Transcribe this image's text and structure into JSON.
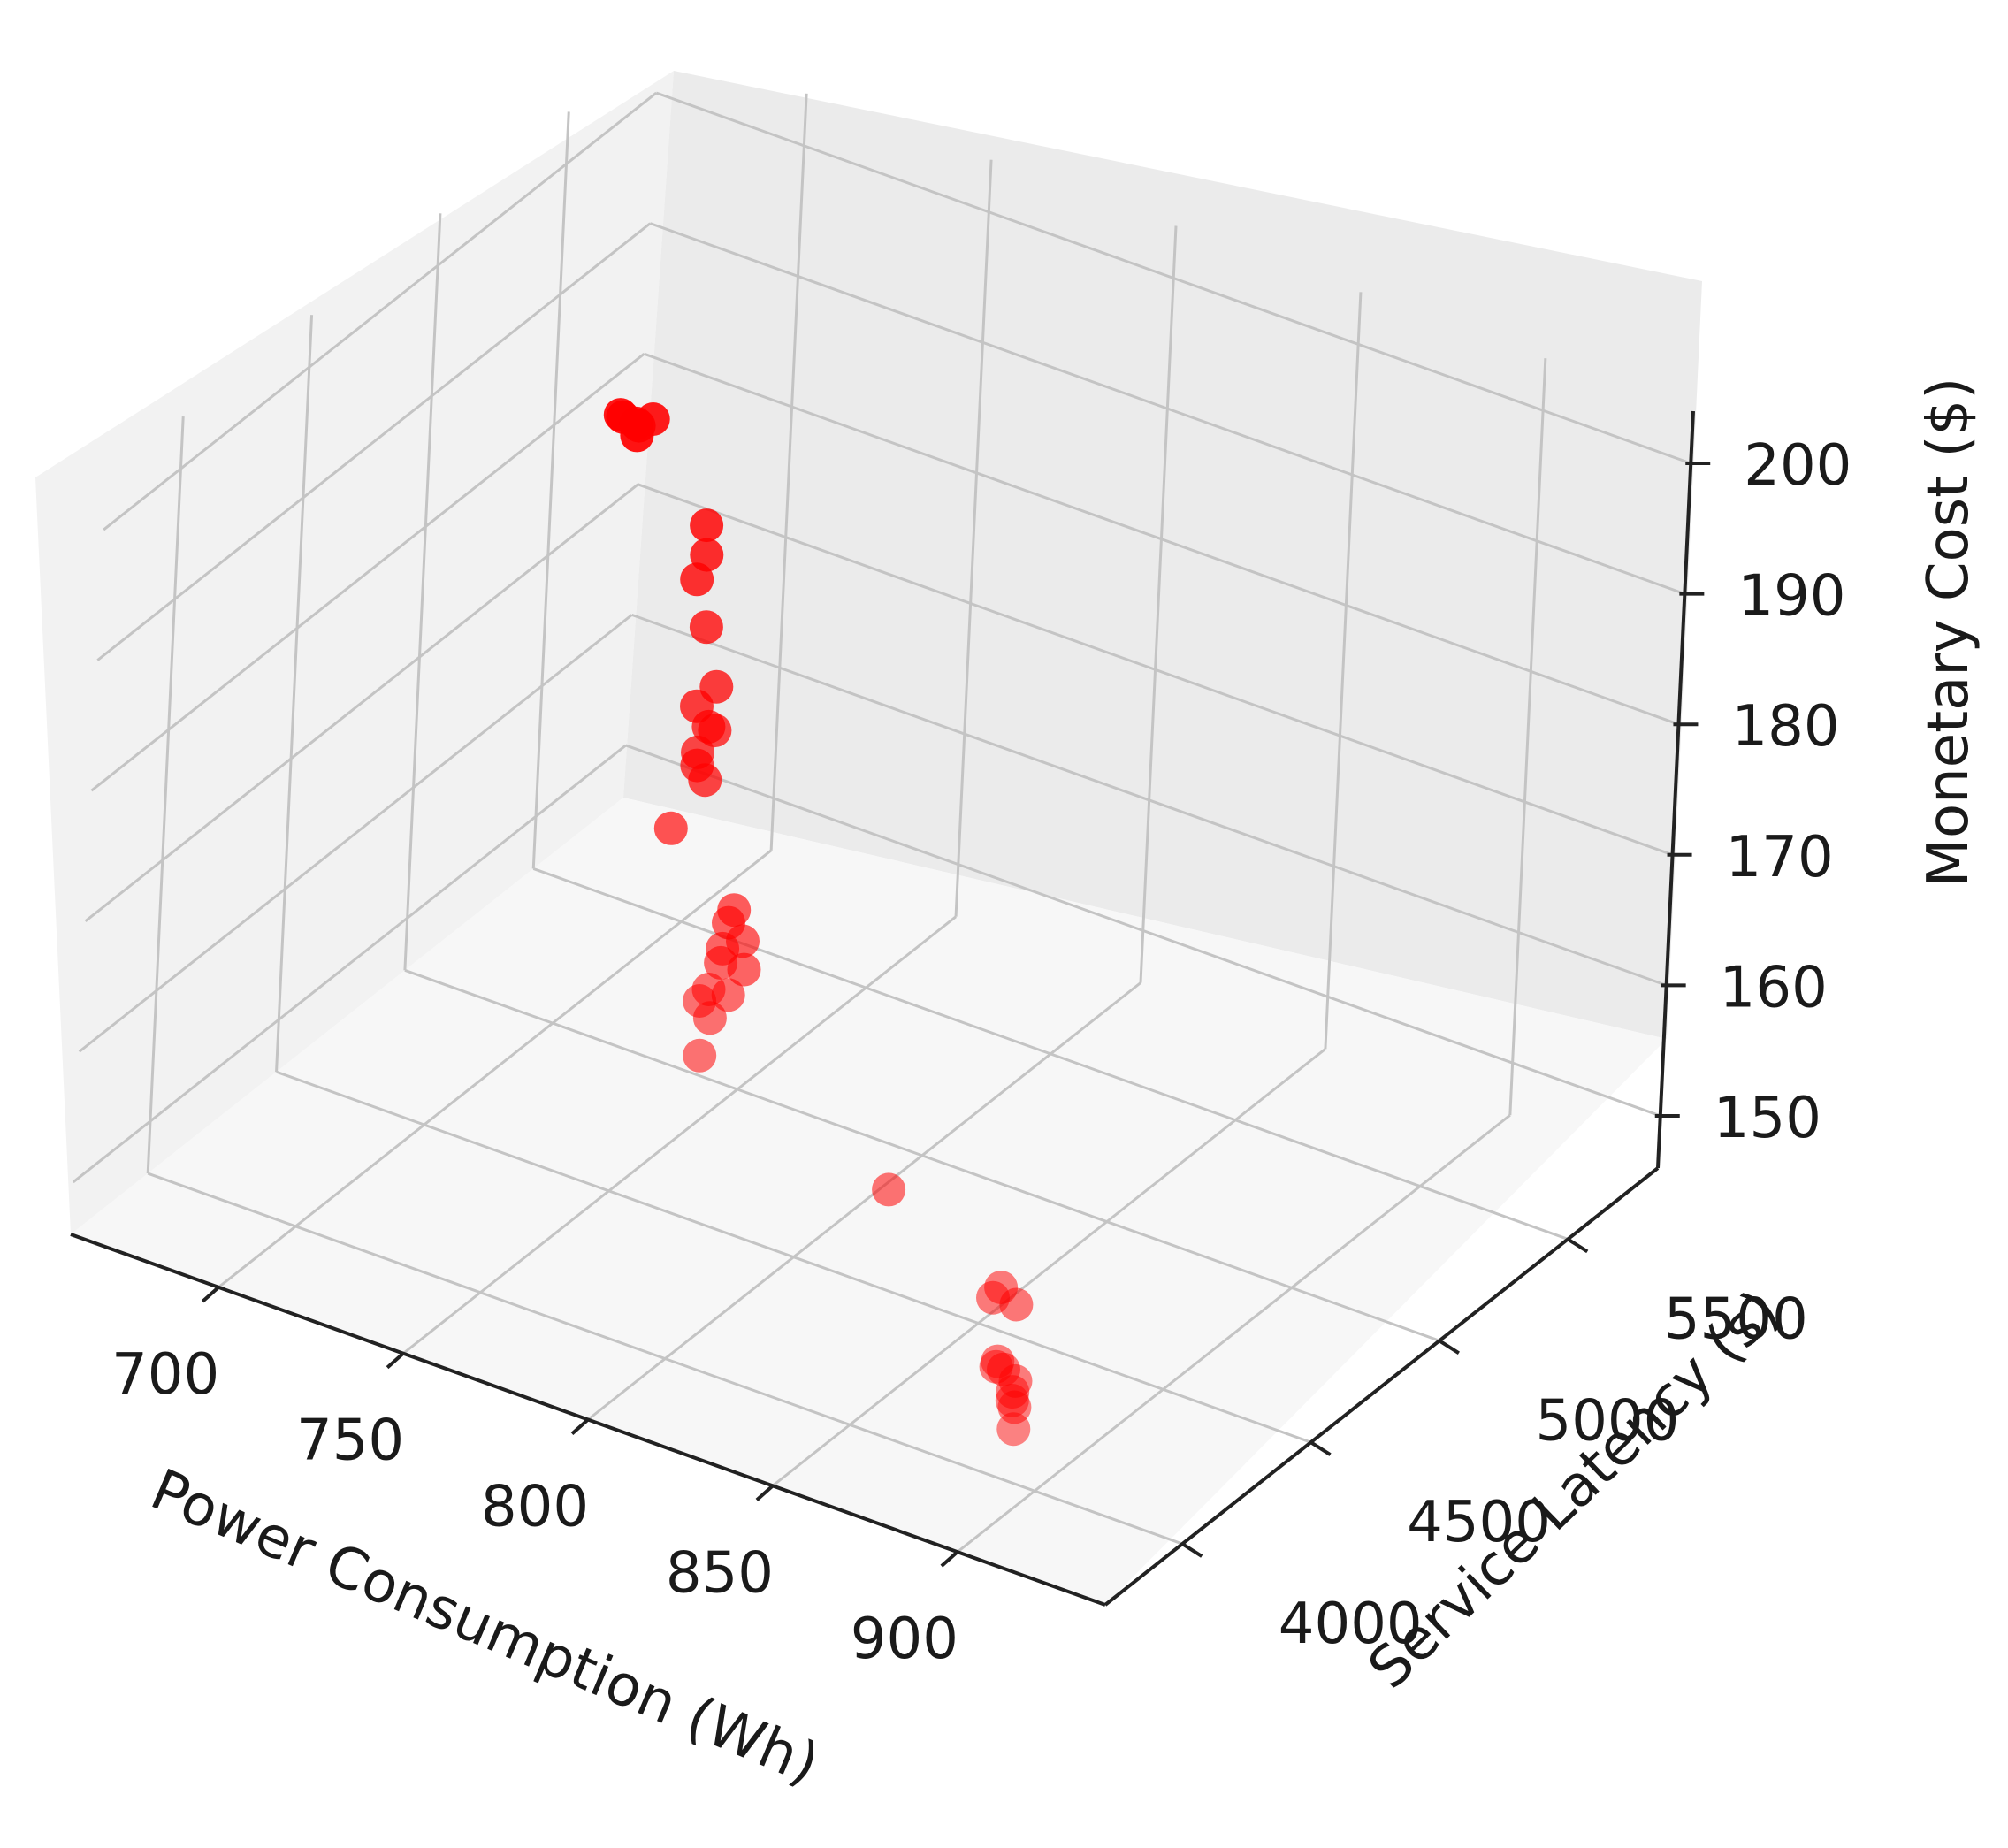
{
  "chart_data": {
    "type": "scatter",
    "projection": "3d",
    "xlabel": "Power Consumption (Wh)",
    "ylabel": "Service Latency (s)",
    "zlabel": "Monetary Cost ($)",
    "xticks": [
      700,
      750,
      800,
      850,
      900
    ],
    "yticks": [
      4000,
      4500,
      5000,
      5500
    ],
    "zticks": [
      150,
      160,
      170,
      180,
      190,
      200
    ],
    "xlim": [
      660,
      940
    ],
    "ylim": [
      3700,
      5850
    ],
    "zlim": [
      146,
      204
    ],
    "grid": true,
    "legend": "none",
    "marker_color": "#ff0000",
    "series": [
      {
        "x": [
          665,
          667,
          669,
          672,
          676,
          683,
          715,
          722,
          723,
          736,
          746,
          741,
          756,
          755,
          755,
          754,
          751,
          762,
          793,
          795,
          799,
          797,
          800,
          803,
          809,
          807,
          808,
          811,
          812,
          864,
          903,
          905,
          906,
          907,
          908,
          910,
          912,
          914,
          916,
          918,
          920
        ],
        "y": [
          5700,
          5660,
          5700,
          5650,
          5600,
          5550,
          5300,
          5200,
          5150,
          5000,
          4900,
          4900,
          4750,
          4700,
          4700,
          4750,
          4800,
          4500,
          4300,
          4250,
          4250,
          4200,
          4150,
          4200,
          4050,
          4000,
          3950,
          3950,
          3900,
          3900,
          3750,
          3750,
          3800,
          3720,
          3700,
          3700,
          3720,
          3680,
          3650,
          3630,
          3600
        ],
        "z": [
          178,
          179,
          177,
          179,
          180,
          182,
          181,
          181,
          180,
          180,
          178,
          176,
          178,
          177,
          176,
          174,
          177,
          175,
          175,
          175,
          174,
          174,
          174,
          173,
          174,
          175,
          175,
          174,
          172,
          167,
          165,
          166,
          164,
          161,
          161,
          161,
          160,
          160,
          160,
          160,
          159
        ]
      }
    ]
  }
}
